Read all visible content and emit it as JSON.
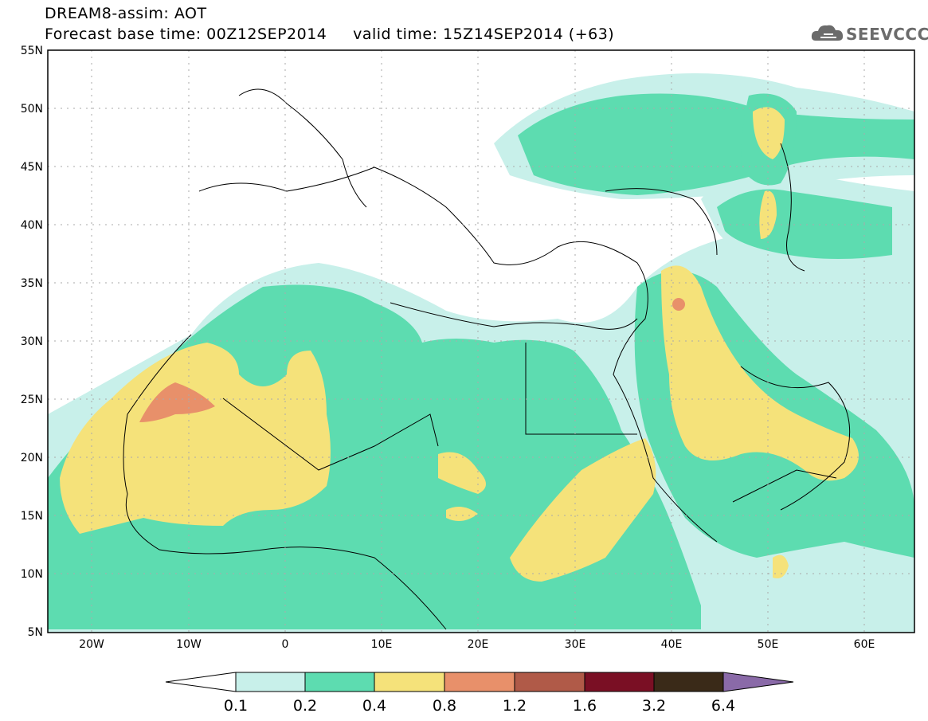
{
  "title": {
    "line1": "DREAM8-assim: AOT",
    "base_time": "Forecast base time: 00Z12SEP2014",
    "valid_time": "valid time: 15Z14SEP2014 (+63)"
  },
  "logo": {
    "text": "SEEVCCC",
    "icon": "cloud-logo-icon"
  },
  "map": {
    "lat_labels": [
      "55N",
      "50N",
      "45N",
      "40N",
      "35N",
      "30N",
      "25N",
      "20N",
      "15N",
      "10N",
      "5N"
    ],
    "lon_labels": [
      "20W",
      "10W",
      "0",
      "10E",
      "20E",
      "30E",
      "40E",
      "50E",
      "60E"
    ],
    "lat_range": [
      5,
      55
    ],
    "lon_range": [
      -25,
      65
    ]
  },
  "colorbar": {
    "ticks": [
      "0.1",
      "0.2",
      "0.4",
      "0.8",
      "1.2",
      "1.6",
      "3.2",
      "6.4"
    ],
    "colors": [
      "#ffffff",
      "#c8f0ea",
      "#5ddcb0",
      "#f5e27a",
      "#e8906a",
      "#b05a48",
      "#7a0f24",
      "#3a2a18",
      "#8a6aa8"
    ]
  }
}
